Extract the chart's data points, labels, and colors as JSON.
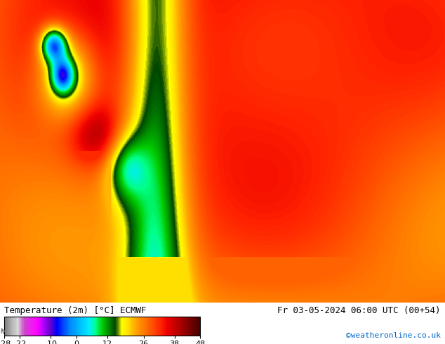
{
  "title_left": "Temperature (2m) [°C] ECMWF",
  "title_right": "Fr 03-05-2024 06:00 UTC (00+54)",
  "credit": "©weatheronline.co.uk",
  "colorbar_ticks": [
    -28,
    -22,
    -10,
    0,
    12,
    26,
    38,
    48
  ],
  "colorbar_colors": [
    "#808080",
    "#b0b0b0",
    "#d8d8d8",
    "#cc44cc",
    "#ee22ee",
    "#ff00ff",
    "#aa00ff",
    "#6600cc",
    "#0000ff",
    "#0044ff",
    "#0088ff",
    "#00aaff",
    "#00ccff",
    "#00eeff",
    "#00ff88",
    "#00cc00",
    "#008800",
    "#004400",
    "#ffff00",
    "#ffdd00",
    "#ffaa00",
    "#ff8800",
    "#ff6600",
    "#ff4400",
    "#ff2200",
    "#ee0000",
    "#cc0000",
    "#aa0000",
    "#880000",
    "#660000",
    "#440000"
  ],
  "vmin": -28,
  "vmax": 48,
  "background_color": "#ffffff",
  "map_bg_color": "#ffaa00",
  "figsize": [
    6.34,
    4.9
  ],
  "dpi": 100
}
